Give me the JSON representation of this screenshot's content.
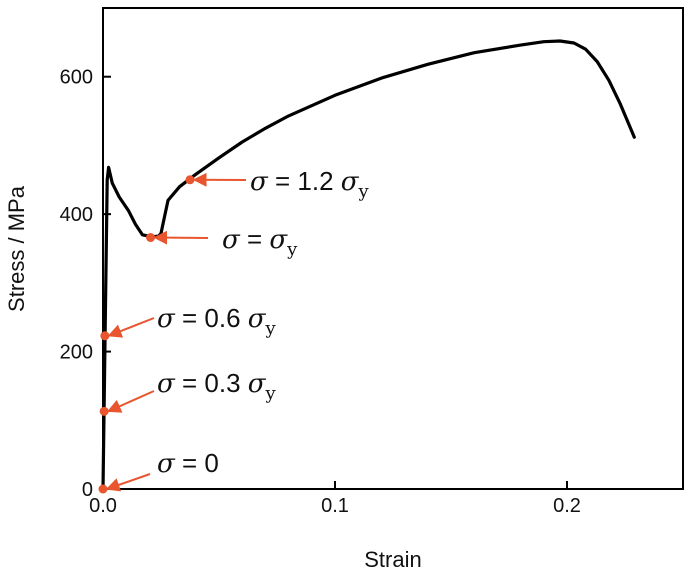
{
  "chart_data": {
    "type": "line",
    "title": "",
    "xlabel": "Strain",
    "ylabel": "Stress / MPa",
    "xlim": [
      0,
      0.25
    ],
    "ylim": [
      0,
      700
    ],
    "xticks": [
      0.0,
      0.1,
      0.2
    ],
    "xtick_labels": [
      "0.0",
      "0.1",
      "0.2"
    ],
    "yticks": [
      0,
      200,
      400,
      600
    ],
    "ytick_labels": [
      "0",
      "200",
      "400",
      "600"
    ],
    "grid": false,
    "legend": "none",
    "line_color": "#000000",
    "marker_color": "#e8552f",
    "series": [
      {
        "x": [
          0,
          0.0018,
          0.0024,
          0.004,
          0.007,
          0.011,
          0.014,
          0.017,
          0.021,
          0.024,
          0.025,
          0.026,
          0.028,
          0.033,
          0.04,
          0.05,
          0.06,
          0.07,
          0.08,
          0.1,
          0.12,
          0.14,
          0.16,
          0.18,
          0.19,
          0.197,
          0.203,
          0.208,
          0.213,
          0.218,
          0.223,
          0.229
        ],
        "y": [
          0,
          450,
          468,
          445,
          425,
          405,
          385,
          370,
          367,
          368,
          372,
          388,
          420,
          440,
          458,
          482,
          505,
          525,
          543,
          573,
          598,
          618,
          635,
          646,
          651,
          652,
          649,
          640,
          622,
          595,
          560,
          512
        ]
      }
    ],
    "annotations": [
      {
        "x": 0.0,
        "y": 0,
        "symbol": "σ",
        "text": " = 0",
        "sub": ""
      },
      {
        "x": 0.0005,
        "y": 113,
        "symbol": "σ",
        "text": " = 0.3 ",
        "sub": "y"
      },
      {
        "x": 0.0008,
        "y": 223,
        "symbol": "σ",
        "text": " = 0.6 ",
        "sub": "y"
      },
      {
        "x": 0.0205,
        "y": 366,
        "symbol": "σ",
        "text": " = ",
        "sub": "y"
      },
      {
        "x": 0.0375,
        "y": 450,
        "symbol": "σ",
        "text": " = 1.2 ",
        "sub": "y"
      }
    ]
  }
}
